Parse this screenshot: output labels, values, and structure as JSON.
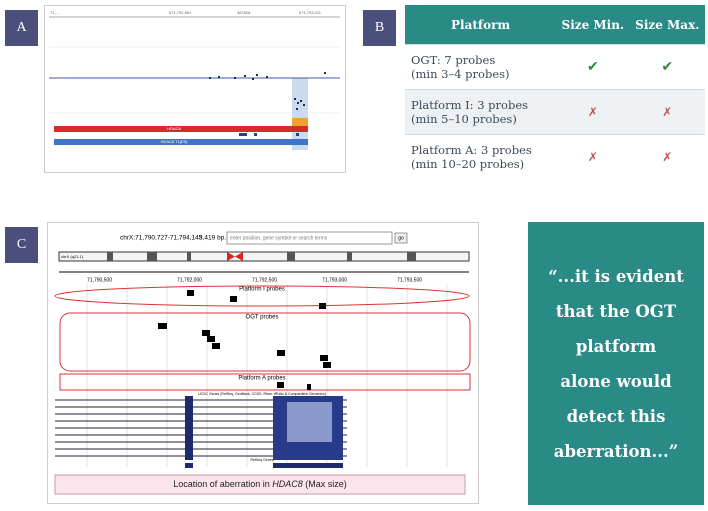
{
  "panels": {
    "a": "A",
    "b": "B",
    "c": "C"
  },
  "panel_a": {
    "ruler": [
      "71,...",
      "671,792,981",
      "387808",
      "671,793,211"
    ],
    "tracks": [
      "HDAC8",
      "HDAC8 T1(E5)"
    ]
  },
  "table": {
    "header": [
      "Platform",
      "Size Min.",
      "Size Max."
    ],
    "rows": [
      [
        [
          "OGT: 7 probes",
          "(min 3–4 probes)"
        ],
        "✔",
        "✔"
      ],
      [
        [
          "Platform I: 3 probes",
          "(min 5–10 probes)"
        ],
        "✗",
        "✗"
      ],
      [
        [
          "Platform A: 3 probes",
          "(min 10–20 probes)"
        ],
        "✗",
        "✗"
      ]
    ]
  },
  "panel_c": {
    "position": "chrX:71,790,727-71,794,145",
    "size": "3,419 bp.",
    "search": "enter position, gene symbol or search terms",
    "go": "go",
    "chrom": "chrX (q21.1)",
    "axis": [
      "71,790,500",
      "71,792,000",
      "71,792,500",
      "71,793,000",
      "71,793,500"
    ],
    "tracks": [
      "Platform I probes",
      "OGT probes",
      "Platform A probes"
    ],
    "genes": "UCSC Genes (RefSeq, GenBank, CCDS, Rfam, tRNAs & Comparative Genomics)",
    "refseq": "RefSeq Genes",
    "caption": {
      "before": "Location of aberration in ",
      "gene": "HDAC8",
      "after": " (Max size)"
    }
  },
  "quote": [
    "“...it is evident",
    "that the OGT",
    "platform",
    "alone would",
    "detect this",
    "aberration...”"
  ]
}
